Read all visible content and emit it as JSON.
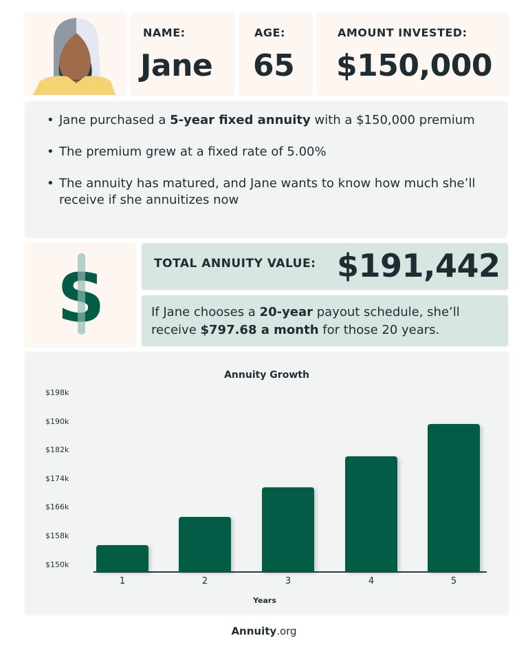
{
  "profile": {
    "name_label": "NAME:",
    "name": "Jane",
    "age_label": "AGE:",
    "age": "65",
    "amount_label": "AMOUNT INVESTED:",
    "amount": "$150,000",
    "avatar_icon": "woman-avatar-icon"
  },
  "bullets": [
    {
      "pre": "Jane purchased a ",
      "bold": "5-year fixed annuity",
      "post": " with a $150,000 premium"
    },
    {
      "pre": "The premium grew at a fixed rate of 5.00%",
      "bold": "",
      "post": ""
    },
    {
      "pre": "The annuity has matured, and Jane wants to know how much she’ll receive if she annuitizes now",
      "bold": "",
      "post": ""
    }
  ],
  "result": {
    "dollar_icon": "dollar-sign-icon",
    "total_label": "TOTAL ANNUITY VALUE:",
    "total_value": "$191,442",
    "payout": {
      "p1": "If Jane chooses a ",
      "b1": "20-year",
      "p2": " payout schedule, she’ll receive ",
      "b2": "$797.68 a month",
      "p3": " for those 20 years."
    }
  },
  "colors": {
    "bar": "#025c46",
    "cream": "#fdf6f1",
    "mint": "#d7e6e1",
    "panel": "#f1f4f3",
    "text": "#1f2d33"
  },
  "chart_data": {
    "type": "bar",
    "title": "Annuity Growth",
    "xlabel": "Years",
    "ylabel": "",
    "categories": [
      "1",
      "2",
      "3",
      "4",
      "5"
    ],
    "values": [
      157500,
      165375,
      173644,
      182326,
      191442
    ],
    "yticks": [
      "$198k",
      "$190k",
      "$182k",
      "$174k",
      "$166k",
      "$158k",
      "$150k"
    ],
    "ylim": [
      150000,
      198000
    ],
    "grid": false,
    "legend": null
  },
  "footer": {
    "brand_bold": "Annuity",
    "brand_suffix": ".org"
  }
}
